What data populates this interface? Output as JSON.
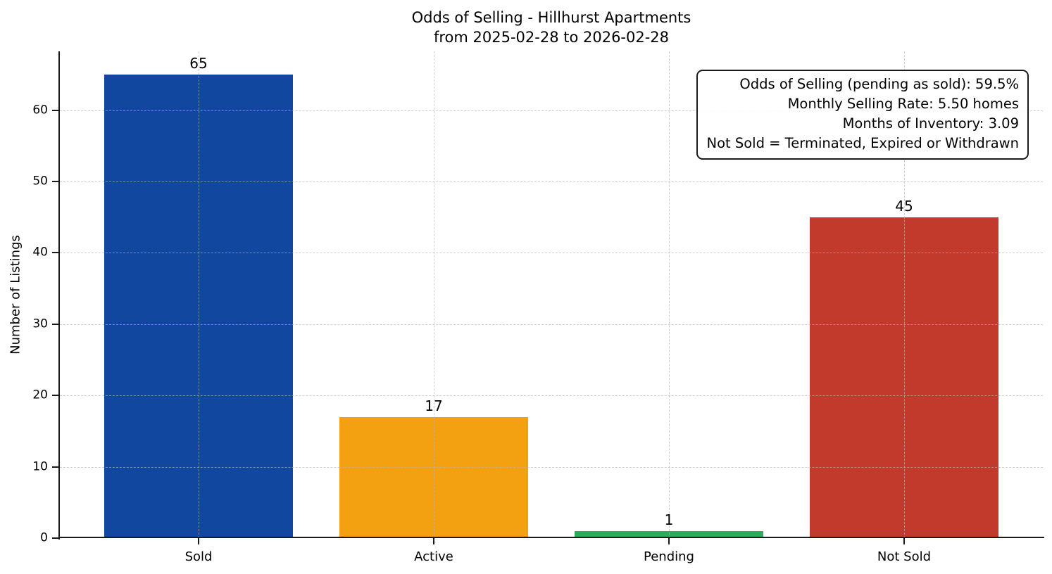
{
  "chart_data": {
    "type": "bar",
    "title": "Odds of Selling - Hillhurst Apartments",
    "subtitle": "from 2025-02-28 to 2026-02-28",
    "categories": [
      "Sold",
      "Active",
      "Pending",
      "Not Sold"
    ],
    "values": [
      65,
      17,
      1,
      45
    ],
    "bar_colors": [
      "#11479E",
      "#F3A011",
      "#2BAD5D",
      "#C23A2B"
    ],
    "value_labels": [
      "65",
      "17",
      "1",
      "45"
    ],
    "xlabel": "",
    "ylabel": "Number of Listings",
    "yticks": [
      0,
      10,
      20,
      30,
      40,
      50,
      60
    ],
    "ylim": [
      0,
      68.25
    ],
    "bar_width_fraction": 0.8,
    "grid": "dashed, horizontal at yticks and vertical at category centers, drawn above bars",
    "legend": "none",
    "annotation_box": {
      "position": "top-right",
      "lines": [
        "Odds of Selling (pending as sold): 59.5%",
        "Monthly Selling Rate: 5.50 homes",
        "Months of Inventory: 3.09",
        "Not Sold = Terminated, Expired or Withdrawn"
      ]
    }
  },
  "colors": {
    "background": "#ffffff",
    "spine": "#1a1a1a",
    "gridline": "#c8c8c8",
    "text": "#000000"
  }
}
